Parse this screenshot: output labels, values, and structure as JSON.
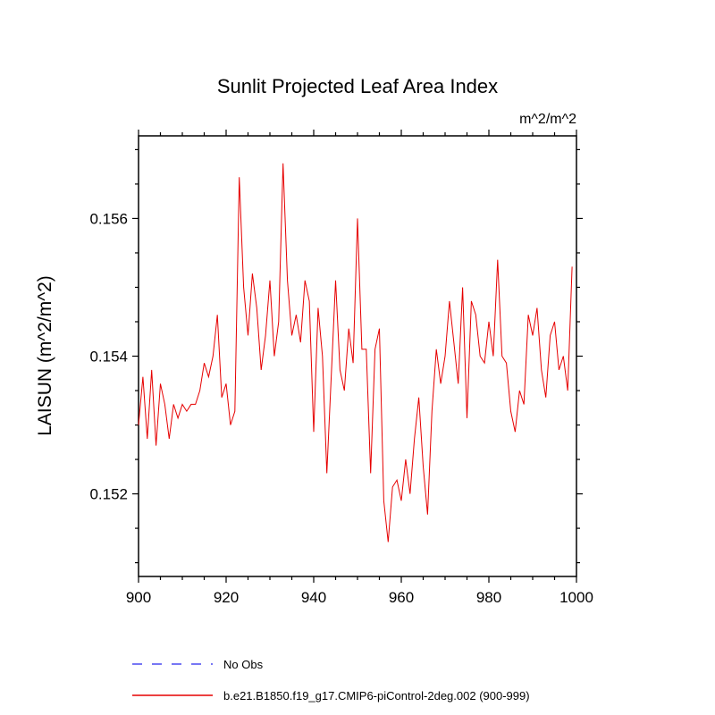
{
  "chart_data": {
    "type": "line",
    "title": "Sunlit Projected Leaf Area Index",
    "units": "m^2/m^2",
    "ylabel": "LAISUN  (m^2/m^2)",
    "xlabel": "",
    "xlim": [
      900,
      1000
    ],
    "ylim": [
      0.1508,
      0.1572
    ],
    "x_ticks": [
      900,
      920,
      940,
      960,
      980,
      1000
    ],
    "x_tick_labels": [
      "900",
      "920",
      "940",
      "960",
      "980",
      "1000"
    ],
    "x_minor_step": 5,
    "y_ticks": [
      0.152,
      0.154,
      0.156
    ],
    "y_tick_labels": [
      "0.152",
      "0.154",
      "0.156"
    ],
    "y_minor_step": 0.0005,
    "grid": false,
    "series_name": "b.e21.B1850.f19_g17.CMIP6-piControl-2deg.002 (900-999)",
    "series_color": "#e60000",
    "x": [
      900,
      901,
      902,
      903,
      904,
      905,
      906,
      907,
      908,
      909,
      910,
      911,
      912,
      913,
      914,
      915,
      916,
      917,
      918,
      919,
      920,
      921,
      922,
      923,
      924,
      925,
      926,
      927,
      928,
      929,
      930,
      931,
      932,
      933,
      934,
      935,
      936,
      937,
      938,
      939,
      940,
      941,
      942,
      943,
      944,
      945,
      946,
      947,
      948,
      949,
      950,
      951,
      952,
      953,
      954,
      955,
      956,
      957,
      958,
      959,
      960,
      961,
      962,
      963,
      964,
      965,
      966,
      967,
      968,
      969,
      970,
      971,
      972,
      973,
      974,
      975,
      976,
      977,
      978,
      979,
      980,
      981,
      982,
      983,
      984,
      985,
      986,
      987,
      988,
      989,
      990,
      991,
      992,
      993,
      994,
      995,
      996,
      997,
      998,
      999
    ],
    "values": [
      0.153,
      0.1537,
      0.1528,
      0.1538,
      0.1527,
      0.1536,
      0.1533,
      0.1528,
      0.1533,
      0.1531,
      0.1533,
      0.1532,
      0.1533,
      0.1533,
      0.1535,
      0.1539,
      0.1537,
      0.154,
      0.1546,
      0.1534,
      0.1536,
      0.153,
      0.1532,
      0.1566,
      0.155,
      0.1543,
      0.1552,
      0.1547,
      0.1538,
      0.1543,
      0.1551,
      0.154,
      0.1545,
      0.1568,
      0.1551,
      0.1543,
      0.1546,
      0.1542,
      0.1551,
      0.1548,
      0.1529,
      0.1547,
      0.154,
      0.1523,
      0.1537,
      0.1551,
      0.1538,
      0.1535,
      0.1544,
      0.1539,
      0.156,
      0.1541,
      0.1541,
      0.1523,
      0.1541,
      0.1544,
      0.1519,
      0.1513,
      0.1521,
      0.1522,
      0.1519,
      0.1525,
      0.152,
      0.1528,
      0.1534,
      0.1524,
      0.1517,
      0.1532,
      0.1541,
      0.1536,
      0.154,
      0.1548,
      0.1542,
      0.1536,
      0.155,
      0.1531,
      0.1548,
      0.1546,
      0.154,
      0.1539,
      0.1545,
      0.154,
      0.1554,
      0.154,
      0.1539,
      0.1532,
      0.1529,
      0.1535,
      0.1533,
      0.1546,
      0.1543,
      0.1547,
      0.1538,
      0.1534,
      0.1543,
      0.1545,
      0.1538,
      0.154,
      0.1535,
      0.1553
    ],
    "legend_position": "bottom-left"
  },
  "legend": {
    "entries": [
      {
        "label": "No Obs",
        "color": "#4a4af0",
        "style": "dashed"
      },
      {
        "label": "b.e21.B1850.f19_g17.CMIP6-piControl-2deg.002 (900-999)",
        "color": "#e60000",
        "style": "solid"
      }
    ]
  }
}
